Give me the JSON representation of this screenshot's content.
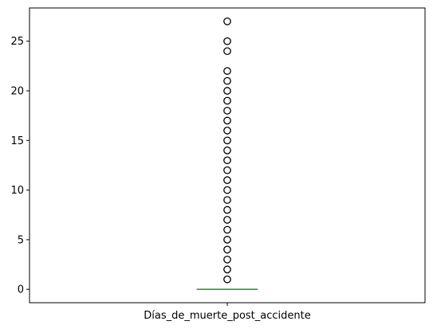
{
  "chart_data": {
    "type": "box",
    "categories": [
      "Días_de_muerte_post_accidente"
    ],
    "series": [
      {
        "box": {
          "min": 0,
          "q1": 0,
          "median": 0,
          "q3": 0,
          "max": 0
        },
        "outliers": [
          1,
          2,
          3,
          4,
          5,
          6,
          7,
          8,
          9,
          10,
          11,
          12,
          13,
          14,
          15,
          16,
          17,
          18,
          19,
          20,
          21,
          22,
          24,
          25,
          27
        ]
      }
    ],
    "yticks": [
      0,
      5,
      10,
      15,
      20,
      25
    ],
    "ylim": [
      -1.35,
      28.35
    ],
    "grid": false,
    "colors": {
      "median": "#2ca02c",
      "box": "#1f77b4",
      "outlier_edge": "#000000"
    }
  }
}
